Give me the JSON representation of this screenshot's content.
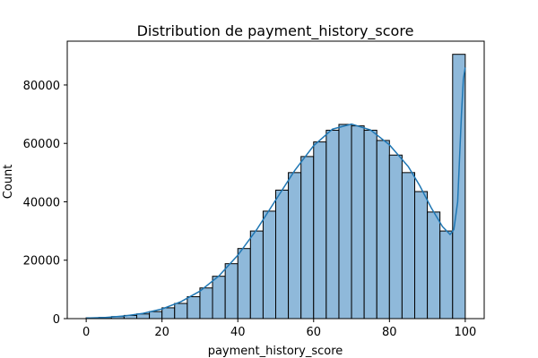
{
  "chart_data": {
    "type": "bar",
    "subtype": "histogram-with-kde",
    "title": "Distribution de payment_history_score",
    "xlabel": "payment_history_score",
    "ylabel": "Count",
    "xlim": [
      -5,
      105
    ],
    "ylim": [
      0,
      95000
    ],
    "x_ticks": [
      0,
      20,
      40,
      60,
      80,
      100
    ],
    "y_ticks": [
      0,
      20000,
      40000,
      60000,
      80000
    ],
    "x_tick_labels": [
      "0",
      "20",
      "40",
      "60",
      "80",
      "100"
    ],
    "y_tick_labels": [
      "0",
      "20000",
      "40000",
      "60000",
      "80000"
    ],
    "grid": false,
    "legend": "none",
    "bins": {
      "edges": [
        0,
        3.33,
        6.67,
        10,
        13.33,
        16.67,
        20,
        23.33,
        26.67,
        30,
        33.33,
        36.67,
        40,
        43.33,
        46.67,
        50,
        53.33,
        56.67,
        60,
        63.33,
        66.67,
        70,
        73.33,
        76.67,
        80,
        83.33,
        86.67,
        90,
        93.33,
        96.67,
        100
      ],
      "counts": [
        300,
        400,
        700,
        1100,
        1600,
        2400,
        3700,
        5200,
        7500,
        10500,
        14500,
        18800,
        24000,
        30000,
        36800,
        44000,
        50000,
        55500,
        60500,
        64500,
        66500,
        66000,
        64500,
        61000,
        56000,
        50000,
        43500,
        36500,
        30000,
        90500
      ]
    },
    "kde": {
      "x": [
        0,
        5,
        10,
        15,
        20,
        25,
        30,
        35,
        40,
        45,
        50,
        55,
        60,
        65,
        70,
        75,
        80,
        85,
        88,
        91,
        94,
        96,
        97,
        98,
        98.5,
        99,
        99.5,
        100
      ],
      "y": [
        200,
        400,
        900,
        1800,
        3300,
        5800,
        9400,
        14600,
        21700,
        30500,
        40600,
        50700,
        59200,
        64900,
        66600,
        64600,
        59500,
        52000,
        45500,
        38000,
        31500,
        28800,
        30500,
        40000,
        55000,
        70000,
        82000,
        86000
      ]
    },
    "colors": {
      "bar_fill": "#8fb9da",
      "bar_edge": "#000000",
      "kde_line": "#1f77b4"
    }
  }
}
